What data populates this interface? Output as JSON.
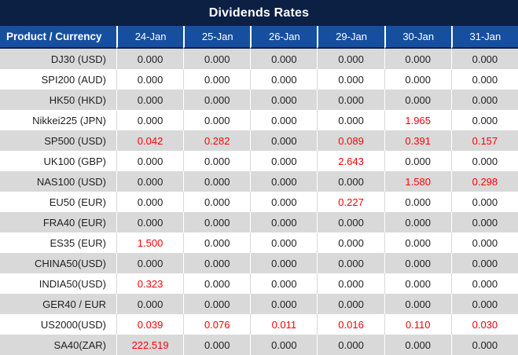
{
  "title": "Dividends Rates",
  "colors": {
    "title_bar_bg": "#0c2044",
    "header_bg": "#164f9f",
    "header_text": "#ffffff",
    "row_stripe_bg": "#d9d9d9",
    "row_plain_bg": "#ffffff",
    "value_default": "#1f1f1f",
    "value_highlight_red": "#ff0000"
  },
  "table": {
    "header_product": "Product / Currency",
    "columns": [
      "24-Jan",
      "25-Jan",
      "26-Jan",
      "29-Jan",
      "30-Jan",
      "31-Jan"
    ],
    "rows": [
      {
        "product": "DJ30 (USD)",
        "values": [
          "0.000",
          "0.000",
          "0.000",
          "0.000",
          "0.000",
          "0.000"
        ]
      },
      {
        "product": "SPI200 (AUD)",
        "values": [
          "0.000",
          "0.000",
          "0.000",
          "0.000",
          "0.000",
          "0.000"
        ]
      },
      {
        "product": "HK50 (HKD)",
        "values": [
          "0.000",
          "0.000",
          "0.000",
          "0.000",
          "0.000",
          "0.000"
        ]
      },
      {
        "product": "Nikkei225 (JPN)",
        "values": [
          "0.000",
          "0.000",
          "0.000",
          "0.000",
          "1.965",
          "0.000"
        ]
      },
      {
        "product": "SP500 (USD)",
        "values": [
          "0.042",
          "0.282",
          "0.000",
          "0.089",
          "0.391",
          "0.157"
        ]
      },
      {
        "product": "UK100 (GBP)",
        "values": [
          "0.000",
          "0.000",
          "0.000",
          "2.643",
          "0.000",
          "0.000"
        ]
      },
      {
        "product": "NAS100 (USD)",
        "values": [
          "0.000",
          "0.000",
          "0.000",
          "0.000",
          "1.580",
          "0.298"
        ]
      },
      {
        "product": "EU50 (EUR)",
        "values": [
          "0.000",
          "0.000",
          "0.000",
          "0.227",
          "0.000",
          "0.000"
        ]
      },
      {
        "product": "FRA40 (EUR)",
        "values": [
          "0.000",
          "0.000",
          "0.000",
          "0.000",
          "0.000",
          "0.000"
        ]
      },
      {
        "product": "ES35 (EUR)",
        "values": [
          "1.500",
          "0.000",
          "0.000",
          "0.000",
          "0.000",
          "0.000"
        ]
      },
      {
        "product": "CHINA50(USD)",
        "values": [
          "0.000",
          "0.000",
          "0.000",
          "0.000",
          "0.000",
          "0.000"
        ]
      },
      {
        "product": "INDIA50(USD)",
        "values": [
          "0.323",
          "0.000",
          "0.000",
          "0.000",
          "0.000",
          "0.000"
        ]
      },
      {
        "product": "GER40 / EUR",
        "values": [
          "0.000",
          "0.000",
          "0.000",
          "0.000",
          "0.000",
          "0.000"
        ]
      },
      {
        "product": "US2000(USD)",
        "values": [
          "0.039",
          "0.076",
          "0.011",
          "0.016",
          "0.110",
          "0.030"
        ]
      },
      {
        "product": "SA40(ZAR)",
        "values": [
          "222.519",
          "0.000",
          "0.000",
          "0.000",
          "0.000",
          "0.000"
        ]
      }
    ]
  }
}
